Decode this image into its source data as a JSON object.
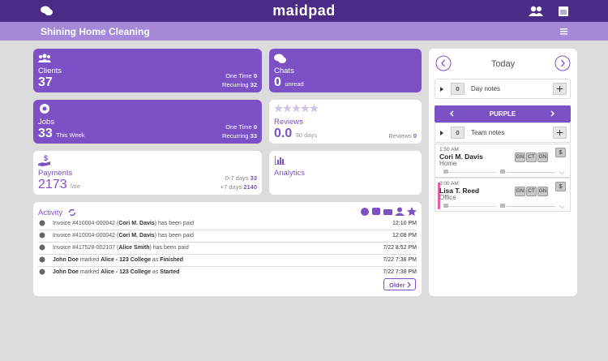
{
  "header": {
    "logo": "maidpad",
    "title": "Shining Home Cleaning"
  },
  "cards": {
    "clients": {
      "label": "Clients",
      "value": 37,
      "one_time_label": "One Time",
      "one_time": 0,
      "recurring_label": "Recurring",
      "recurring": 32
    },
    "chats": {
      "label": "Chats",
      "value": 0,
      "unit": "unread"
    },
    "jobs": {
      "label": "Jobs",
      "value": 33,
      "unit": "This Week",
      "one_time_label": "One Time",
      "one_time": 0,
      "recurring_label": "Recurring",
      "recurring": 33
    },
    "reviews": {
      "label": "Reviews",
      "value": "0.0",
      "unit": "30 days",
      "count_label": "Reviews",
      "count": 0
    },
    "payments": {
      "label": "Payments",
      "value": 2173,
      "unit": "late",
      "recent_label": "0-7 days",
      "recent": 33,
      "old_label": "+7 days",
      "old": 2140
    },
    "analytics": {
      "label": "Analytics"
    }
  },
  "activity": {
    "title": "Activity",
    "older": "Older",
    "rows": [
      {
        "segments": [
          {
            "text": "Invoice #410004-000042 (",
            "bold": false
          },
          {
            "text": "Cori M. Davis",
            "bold": true
          },
          {
            "text": ") has been paid",
            "bold": false
          }
        ],
        "time": "12:10 PM"
      },
      {
        "segments": [
          {
            "text": "Invoice #410004-000042 (",
            "bold": false
          },
          {
            "text": "Cori M. Davis",
            "bold": true
          },
          {
            "text": ") has been paid",
            "bold": false
          }
        ],
        "time": "12:08 PM"
      },
      {
        "segments": [
          {
            "text": "Invoice #417528-002107 (",
            "bold": false
          },
          {
            "text": "Alice Smith",
            "bold": true
          },
          {
            "text": ") has been paid",
            "bold": false
          }
        ],
        "time": "7/22 8:52 PM"
      },
      {
        "segments": [
          {
            "text": "John Doe",
            "bold": true
          },
          {
            "text": " marked ",
            "bold": false
          },
          {
            "text": "Alice - 123 College",
            "bold": true
          },
          {
            "text": " as ",
            "bold": false
          },
          {
            "text": "Finished",
            "bold": true
          }
        ],
        "time": "7/22 7:38 PM"
      },
      {
        "segments": [
          {
            "text": "John Doe",
            "bold": true
          },
          {
            "text": " marked ",
            "bold": false
          },
          {
            "text": "Alice - 123 College",
            "bold": true
          },
          {
            "text": " as ",
            "bold": false
          },
          {
            "text": "Started",
            "bold": true
          }
        ],
        "time": "7/22 7:38 PM"
      }
    ]
  },
  "schedule": {
    "title": "Today",
    "day_notes": {
      "count": 0,
      "label": "Day notes"
    },
    "team": {
      "name": "PURPLE",
      "notes_count": 0,
      "notes_label": "Team notes"
    },
    "jobs": [
      {
        "time": "1:50 AM",
        "client": "Cori M. Davis",
        "place": "Home",
        "tags": [
          "GN",
          "CT",
          "GN"
        ],
        "price_symbol": "$"
      },
      {
        "time": "9:00 AM",
        "client": "Lisa T. Reed",
        "place": "Office",
        "tags": [
          "GN",
          "CT",
          "GN"
        ],
        "price_symbol": "$"
      }
    ]
  }
}
